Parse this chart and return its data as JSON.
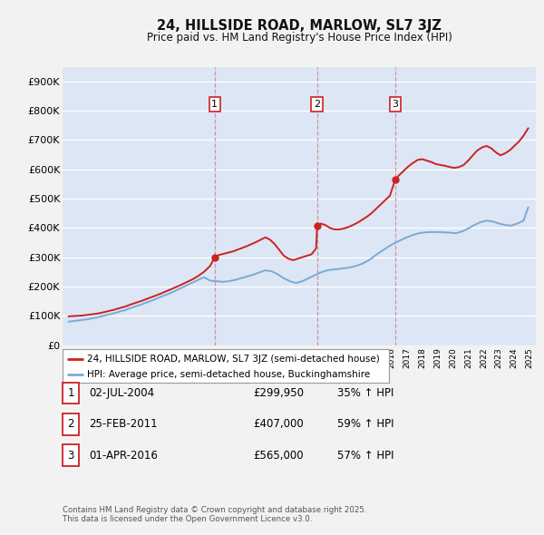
{
  "title": "24, HILLSIDE ROAD, MARLOW, SL7 3JZ",
  "subtitle": "Price paid vs. HM Land Registry's House Price Index (HPI)",
  "ylim": [
    0,
    950000
  ],
  "yticks": [
    0,
    100000,
    200000,
    300000,
    400000,
    500000,
    600000,
    700000,
    800000,
    900000
  ],
  "ytick_labels": [
    "£0",
    "£100K",
    "£200K",
    "£300K",
    "£400K",
    "£500K",
    "£600K",
    "£700K",
    "£800K",
    "£900K"
  ],
  "fig_bg_color": "#f2f2f2",
  "plot_bg_color": "#dce6f5",
  "grid_color": "#ffffff",
  "red_color": "#cc2222",
  "blue_color": "#7aaad4",
  "vline_color": "#cc8888",
  "sale_year_decimals": [
    2004.5,
    2011.17,
    2016.25
  ],
  "sale_prices": [
    299950,
    407000,
    565000
  ],
  "sale_labels": [
    "1",
    "2",
    "3"
  ],
  "legend_label_red": "24, HILLSIDE ROAD, MARLOW, SL7 3JZ (semi-detached house)",
  "legend_label_blue": "HPI: Average price, semi-detached house, Buckinghamshire",
  "table_rows": [
    {
      "num": "1",
      "date": "02-JUL-2004",
      "price": "£299,950",
      "hpi": "35% ↑ HPI"
    },
    {
      "num": "2",
      "date": "25-FEB-2011",
      "price": "£407,000",
      "hpi": "59% ↑ HPI"
    },
    {
      "num": "3",
      "date": "01-APR-2016",
      "price": "£565,000",
      "hpi": "57% ↑ HPI"
    }
  ],
  "footnote": "Contains HM Land Registry data © Crown copyright and database right 2025.\nThis data is licensed under the Open Government Licence v3.0.",
  "red_line_x": [
    1995.0,
    1995.3,
    1995.6,
    1995.9,
    1996.2,
    1996.5,
    1996.8,
    1997.1,
    1997.5,
    1997.9,
    1998.3,
    1998.7,
    1999.0,
    1999.4,
    1999.8,
    2000.2,
    2000.6,
    2001.0,
    2001.4,
    2001.8,
    2002.2,
    2002.6,
    2003.0,
    2003.4,
    2003.8,
    2004.2,
    2004.5,
    2004.8,
    2005.1,
    2005.4,
    2005.7,
    2006.0,
    2006.3,
    2006.6,
    2006.9,
    2007.2,
    2007.5,
    2007.8,
    2008.1,
    2008.4,
    2008.7,
    2009.0,
    2009.3,
    2009.6,
    2009.9,
    2010.2,
    2010.5,
    2010.8,
    2011.1,
    2011.17,
    2011.4,
    2011.7,
    2012.0,
    2012.3,
    2012.6,
    2012.9,
    2013.2,
    2013.5,
    2013.8,
    2014.1,
    2014.4,
    2014.7,
    2015.0,
    2015.3,
    2015.6,
    2015.9,
    2016.25,
    2016.5,
    2016.8,
    2017.1,
    2017.4,
    2017.7,
    2018.0,
    2018.3,
    2018.6,
    2018.9,
    2019.2,
    2019.5,
    2019.8,
    2020.1,
    2020.4,
    2020.7,
    2021.0,
    2021.3,
    2021.6,
    2021.9,
    2022.2,
    2022.5,
    2022.8,
    2023.1,
    2023.4,
    2023.7,
    2024.0,
    2024.3,
    2024.6,
    2024.9
  ],
  "red_line_y": [
    98000,
    99000,
    100000,
    101000,
    103000,
    105000,
    107000,
    110000,
    115000,
    120000,
    126000,
    132000,
    138000,
    145000,
    152000,
    160000,
    168000,
    176000,
    185000,
    194000,
    203000,
    213000,
    223000,
    235000,
    250000,
    270000,
    299950,
    308000,
    312000,
    316000,
    320000,
    326000,
    332000,
    338000,
    345000,
    352000,
    360000,
    368000,
    360000,
    345000,
    325000,
    305000,
    295000,
    290000,
    295000,
    300000,
    305000,
    310000,
    330000,
    407000,
    415000,
    410000,
    400000,
    395000,
    395000,
    398000,
    403000,
    410000,
    418000,
    428000,
    438000,
    450000,
    465000,
    480000,
    495000,
    510000,
    565000,
    580000,
    595000,
    610000,
    622000,
    632000,
    635000,
    630000,
    625000,
    618000,
    615000,
    612000,
    608000,
    605000,
    608000,
    615000,
    630000,
    648000,
    665000,
    675000,
    680000,
    672000,
    658000,
    648000,
    655000,
    665000,
    680000,
    695000,
    715000,
    740000
  ],
  "blue_line_x": [
    1995.0,
    1995.3,
    1995.6,
    1995.9,
    1996.2,
    1996.5,
    1996.8,
    1997.1,
    1997.5,
    1997.9,
    1998.3,
    1998.7,
    1999.0,
    1999.4,
    1999.8,
    2000.2,
    2000.6,
    2001.0,
    2001.4,
    2001.8,
    2002.2,
    2002.6,
    2003.0,
    2003.4,
    2003.8,
    2004.2,
    2004.6,
    2005.0,
    2005.4,
    2005.8,
    2006.2,
    2006.6,
    2007.0,
    2007.4,
    2007.8,
    2008.2,
    2008.6,
    2009.0,
    2009.4,
    2009.8,
    2010.2,
    2010.6,
    2011.0,
    2011.4,
    2011.8,
    2012.2,
    2012.6,
    2013.0,
    2013.4,
    2013.8,
    2014.2,
    2014.6,
    2015.0,
    2015.4,
    2015.8,
    2016.2,
    2016.6,
    2017.0,
    2017.4,
    2017.8,
    2018.2,
    2018.6,
    2019.0,
    2019.4,
    2019.8,
    2020.2,
    2020.6,
    2021.0,
    2021.4,
    2021.8,
    2022.2,
    2022.6,
    2023.0,
    2023.4,
    2023.8,
    2024.2,
    2024.6,
    2024.9
  ],
  "blue_line_y": [
    80000,
    82000,
    84000,
    86000,
    88000,
    91000,
    94000,
    98000,
    103000,
    108000,
    114000,
    120000,
    126000,
    133000,
    140000,
    148000,
    156000,
    165000,
    173000,
    182000,
    192000,
    202000,
    212000,
    222000,
    232000,
    220000,
    218000,
    216000,
    218000,
    222000,
    228000,
    234000,
    240000,
    248000,
    255000,
    252000,
    242000,
    228000,
    218000,
    212000,
    218000,
    228000,
    238000,
    248000,
    255000,
    258000,
    260000,
    263000,
    266000,
    272000,
    280000,
    292000,
    308000,
    322000,
    336000,
    348000,
    358000,
    368000,
    376000,
    382000,
    385000,
    386000,
    386000,
    385000,
    384000,
    382000,
    388000,
    398000,
    410000,
    420000,
    425000,
    422000,
    415000,
    410000,
    408000,
    415000,
    425000,
    470000
  ]
}
